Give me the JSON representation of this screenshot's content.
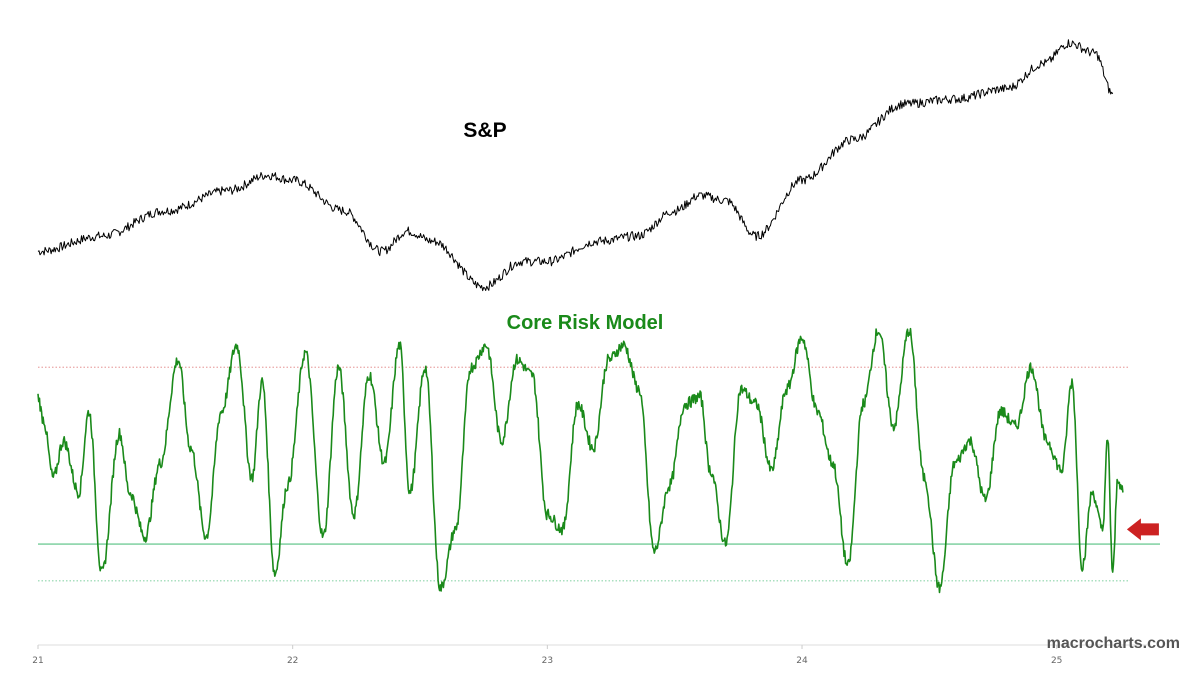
{
  "chart_data": [
    {
      "type": "line",
      "title": "S&P",
      "series": [],
      "x": [
        "21",
        "21.25",
        "21.5",
        "21.75",
        "21.9",
        "22",
        "22.2",
        "22.35",
        "22.45",
        "22.55",
        "22.75",
        "22.9",
        "23",
        "23.2",
        "23.35",
        "23.5",
        "23.6",
        "23.7",
        "23.82",
        "24",
        "24.2",
        "24.4",
        "24.6",
        "24.8",
        "24.95",
        "25.05",
        "25.15",
        "25.22"
      ],
      "values": [
        4000,
        4150,
        4400,
        4600,
        4750,
        4700,
        4400,
        4000,
        4200,
        4100,
        3650,
        3900,
        3900,
        4100,
        4150,
        4400,
        4550,
        4500,
        4150,
        4700,
        5100,
        5450,
        5500,
        5600,
        5850,
        6050,
        5950,
        5550
      ],
      "color": "#000000"
    },
    {
      "type": "line",
      "title": "Core Risk Model",
      "title_color": "#1a8a1a",
      "series": [],
      "x": [
        21.0,
        21.02,
        21.06,
        21.1,
        21.16,
        21.2,
        21.25,
        21.32,
        21.36,
        21.42,
        21.48,
        21.55,
        21.6,
        21.66,
        21.72,
        21.78,
        21.84,
        21.88,
        21.93,
        21.98,
        22.05,
        22.12,
        22.18,
        22.24,
        22.3,
        22.36,
        22.42,
        22.46,
        22.52,
        22.58,
        22.64,
        22.7,
        22.76,
        22.82,
        22.88,
        22.94,
        23.0,
        23.06,
        23.12,
        23.18,
        23.24,
        23.3,
        23.36,
        23.42,
        23.48,
        23.54,
        23.6,
        23.64,
        23.7,
        23.76,
        23.82,
        23.88,
        23.94,
        24.0,
        24.06,
        24.12,
        24.18,
        24.24,
        24.3,
        24.36,
        24.42,
        24.48,
        24.54,
        24.6,
        24.66,
        24.72,
        24.78,
        24.84,
        24.9,
        24.96,
        25.02,
        25.06,
        25.1,
        25.14,
        25.18,
        25.2,
        25.22,
        25.24,
        25.26
      ],
      "values": [
        1.0,
        0.85,
        0.45,
        0.7,
        0.35,
        0.9,
        -0.2,
        0.75,
        0.35,
        0.05,
        0.55,
        1.25,
        0.65,
        0.05,
        0.9,
        1.35,
        0.45,
        1.1,
        -0.2,
        0.4,
        1.3,
        0.05,
        1.2,
        0.2,
        1.15,
        0.55,
        1.35,
        0.35,
        1.2,
        -0.3,
        0.1,
        1.2,
        1.35,
        0.7,
        1.25,
        1.15,
        0.2,
        0.1,
        0.95,
        0.65,
        1.25,
        1.35,
        1.05,
        -0.05,
        0.4,
        0.95,
        1.0,
        0.5,
        0.0,
        1.05,
        0.95,
        0.5,
        1.05,
        1.4,
        0.9,
        0.55,
        -0.15,
        0.95,
        1.45,
        0.8,
        1.45,
        0.45,
        -0.3,
        0.55,
        0.7,
        0.3,
        0.9,
        0.8,
        1.2,
        0.7,
        0.5,
        1.1,
        -0.15,
        0.35,
        0.1,
        0.7,
        -0.2,
        0.45,
        0.35
      ],
      "color": "#1a8a1a",
      "reference_lines": [
        {
          "value": 1.2,
          "style": "dotted",
          "color": "#e08080"
        },
        {
          "value": 0.0,
          "style": "solid",
          "color": "#55c080"
        },
        {
          "value": -0.25,
          "style": "dotted",
          "color": "#55c080"
        }
      ],
      "marker": {
        "type": "arrow",
        "direction": "left",
        "color": "#cc2222",
        "at_x": 25.26
      }
    }
  ],
  "x_axis": {
    "ticks": [
      "21",
      "22",
      "23",
      "24",
      "25"
    ],
    "range": [
      21.0,
      25.28
    ]
  },
  "watermark": "macrocharts.com"
}
